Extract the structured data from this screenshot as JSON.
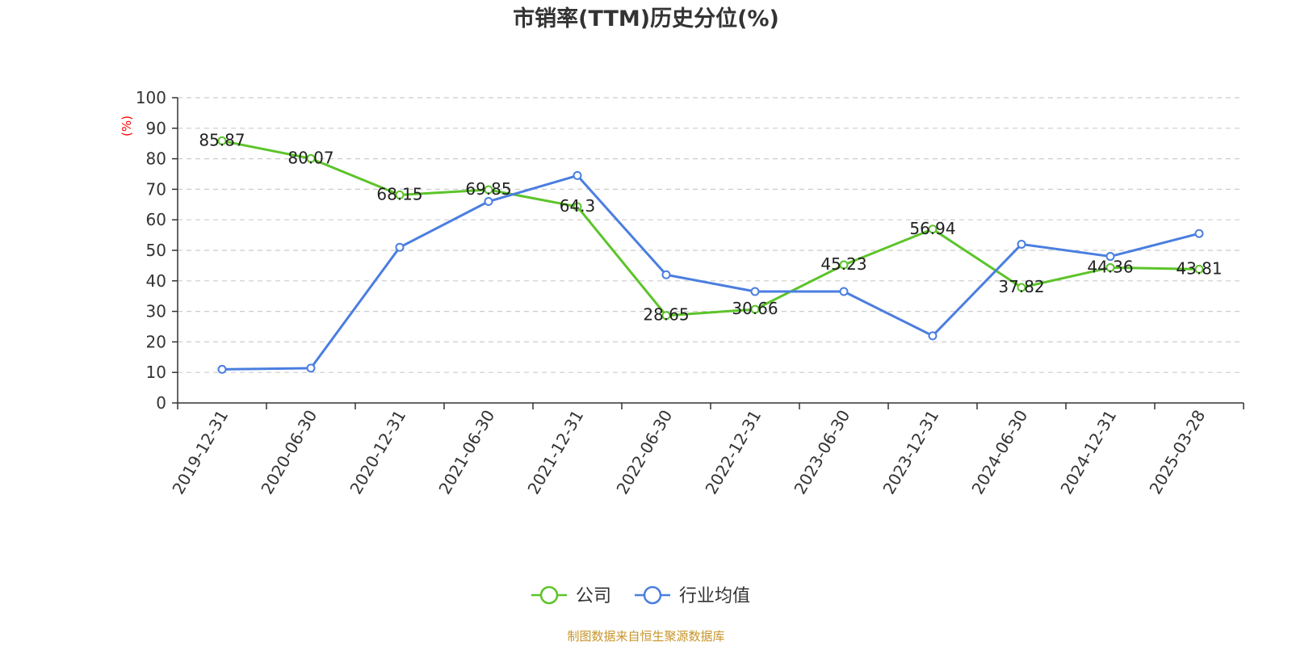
{
  "chart_data": {
    "type": "line",
    "title": "市销率(TTM)历史分位(%)",
    "ylabel": "(%)",
    "xlabel": "",
    "ylim": [
      0,
      100
    ],
    "yticks": [
      0,
      10,
      20,
      30,
      40,
      50,
      60,
      70,
      80,
      90,
      100
    ],
    "grid": true,
    "legend_position": "bottom",
    "categories": [
      "2019-12-31",
      "2020-06-30",
      "2020-12-31",
      "2021-06-30",
      "2021-12-31",
      "2022-06-30",
      "2022-12-31",
      "2023-06-30",
      "2023-12-31",
      "2024-06-30",
      "2024-12-31",
      "2025-03-28"
    ],
    "series": [
      {
        "name": "公司",
        "color": "#5cc42a",
        "values": [
          85.87,
          80.07,
          68.15,
          69.85,
          64.3,
          28.65,
          30.66,
          45.23,
          56.94,
          37.82,
          44.36,
          43.81
        ],
        "labels": [
          "85.87",
          "80.07",
          "68.15",
          "69.85",
          "64.3",
          "28.65",
          "30.66",
          "45.23",
          "56.94",
          "37.82",
          "44.36",
          "43.81"
        ]
      },
      {
        "name": "行业均值",
        "color": "#4a7ee0",
        "values": [
          11.0,
          11.4,
          51.0,
          66.0,
          74.5,
          42.0,
          36.5,
          36.5,
          22.0,
          52.0,
          48.0,
          55.5
        ]
      }
    ],
    "source": "制图数据来自恒生聚源数据库"
  }
}
